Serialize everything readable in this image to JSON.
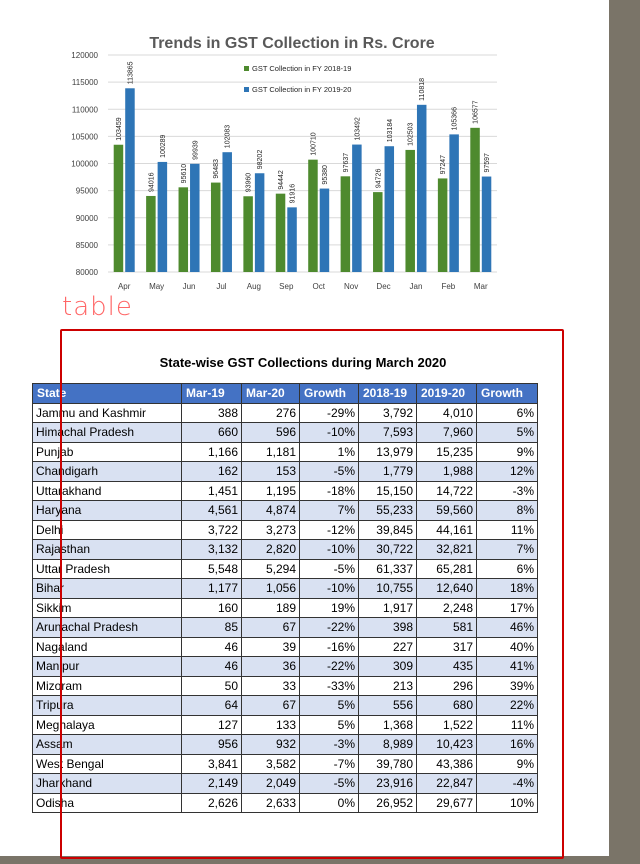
{
  "chart_data": {
    "type": "bar",
    "title": "Trends in GST Collection in Rs. Crore",
    "categories": [
      "Apr",
      "May",
      "Jun",
      "Jul",
      "Aug",
      "Sep",
      "Oct",
      "Nov",
      "Dec",
      "Jan",
      "Feb",
      "Mar"
    ],
    "series": [
      {
        "name": "GST Collection in FY 2018-19",
        "color": "#4e8a2e",
        "values": [
          103459,
          94016,
          95610,
          96483,
          93960,
          94442,
          100710,
          97637,
          94726,
          102503,
          97247,
          106577
        ]
      },
      {
        "name": "GST Collection in FY 2019-20",
        "color": "#2e75b6",
        "values": [
          113865,
          100289,
          99939,
          102083,
          98202,
          91916,
          95380,
          103492,
          103184,
          110818,
          105366,
          97597
        ]
      }
    ],
    "ylim": [
      80000,
      120000
    ],
    "yticks": [
      80000,
      85000,
      90000,
      95000,
      100000,
      105000,
      110000,
      115000,
      120000
    ],
    "xlabel": "",
    "ylabel": "",
    "legend": "top-right",
    "grid": true
  },
  "annotation": {
    "label": "table"
  },
  "table": {
    "title": "State-wise GST Collections during March 2020",
    "headers": [
      "State",
      "Mar-19",
      "Mar-20",
      "Growth",
      "2018-19",
      "2019-20",
      "Growth"
    ],
    "rows": [
      [
        "Jammu and Kashmir",
        "388",
        "276",
        "-29%",
        "3,792",
        "4,010",
        "6%"
      ],
      [
        "Himachal Pradesh",
        "660",
        "596",
        "-10%",
        "7,593",
        "7,960",
        "5%"
      ],
      [
        "Punjab",
        "1,166",
        "1,181",
        "1%",
        "13,979",
        "15,235",
        "9%"
      ],
      [
        "Chandigarh",
        "162",
        "153",
        "-5%",
        "1,779",
        "1,988",
        "12%"
      ],
      [
        "Uttarakhand",
        "1,451",
        "1,195",
        "-18%",
        "15,150",
        "14,722",
        "-3%"
      ],
      [
        "Haryana",
        "4,561",
        "4,874",
        "7%",
        "55,233",
        "59,560",
        "8%"
      ],
      [
        "Delhi",
        "3,722",
        "3,273",
        "-12%",
        "39,845",
        "44,161",
        "11%"
      ],
      [
        "Rajasthan",
        "3,132",
        "2,820",
        "-10%",
        "30,722",
        "32,821",
        "7%"
      ],
      [
        "Uttar Pradesh",
        "5,548",
        "5,294",
        "-5%",
        "61,337",
        "65,281",
        "6%"
      ],
      [
        "Bihar",
        "1,177",
        "1,056",
        "-10%",
        "10,755",
        "12,640",
        "18%"
      ],
      [
        "Sikkim",
        "160",
        "189",
        "19%",
        "1,917",
        "2,248",
        "17%"
      ],
      [
        "Arunachal Pradesh",
        "85",
        "67",
        "-22%",
        "398",
        "581",
        "46%"
      ],
      [
        "Nagaland",
        "46",
        "39",
        "-16%",
        "227",
        "317",
        "40%"
      ],
      [
        "Manipur",
        "46",
        "36",
        "-22%",
        "309",
        "435",
        "41%"
      ],
      [
        "Mizoram",
        "50",
        "33",
        "-33%",
        "213",
        "296",
        "39%"
      ],
      [
        "Tripura",
        "64",
        "67",
        "5%",
        "556",
        "680",
        "22%"
      ],
      [
        "Meghalaya",
        "127",
        "133",
        "5%",
        "1,368",
        "1,522",
        "11%"
      ],
      [
        "Assam",
        "956",
        "932",
        "-3%",
        "8,989",
        "10,423",
        "16%"
      ],
      [
        "West Bengal",
        "3,841",
        "3,582",
        "-7%",
        "39,780",
        "43,386",
        "9%"
      ],
      [
        "Jharkhand",
        "2,149",
        "2,049",
        "-5%",
        "23,916",
        "22,847",
        "-4%"
      ],
      [
        "Odisha",
        "2,626",
        "2,633",
        "0%",
        "26,952",
        "29,677",
        "10%"
      ]
    ]
  }
}
